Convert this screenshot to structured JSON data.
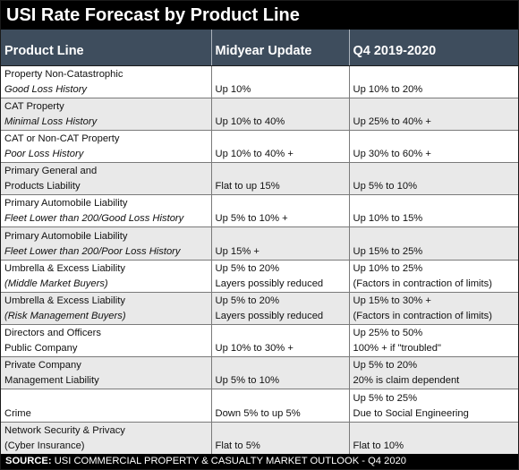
{
  "title": "USI Rate Forecast by Product Line",
  "columns": [
    "Product Line",
    "Midyear Update",
    "Q4 2019-2020"
  ],
  "rows": [
    {
      "product": [
        "Property Non-Catastrophic",
        "Good Loss History"
      ],
      "midyear": [
        "Up 10%"
      ],
      "q4": [
        "Up 10% to 20%"
      ]
    },
    {
      "product": [
        "CAT Property",
        "Minimal Loss History"
      ],
      "midyear": [
        "Up 10% to 40%"
      ],
      "q4": [
        "Up 25% to 40% +"
      ]
    },
    {
      "product": [
        "CAT or Non-CAT Property",
        "Poor Loss History"
      ],
      "midyear": [
        "Up 10% to 40% +"
      ],
      "q4": [
        "Up 30% to 60% +"
      ]
    },
    {
      "product": [
        "Primary General and",
        "Products Liability"
      ],
      "midyear": [
        "Flat to up 15%"
      ],
      "q4": [
        "Up 5% to 10%"
      ]
    },
    {
      "product": [
        "Primary Automobile Liability",
        "Fleet Lower than 200/Good Loss History"
      ],
      "midyear": [
        "Up 5% to 10% +"
      ],
      "q4": [
        "Up 10% to 15%"
      ]
    },
    {
      "product": [
        "Primary Automobile Liability",
        "Fleet Lower than 200/Poor Loss History"
      ],
      "midyear": [
        "Up 15% +"
      ],
      "q4": [
        "Up 15% to 25%"
      ]
    },
    {
      "product": [
        "Umbrella & Excess Liability",
        "(Middle Market Buyers)"
      ],
      "midyear": [
        "Up 5% to 20%",
        "Layers possibly reduced"
      ],
      "q4": [
        "Up 10% to 25%",
        "(Factors in contraction of limits)"
      ]
    },
    {
      "product": [
        "Umbrella & Excess Liability",
        "(Risk Management Buyers)"
      ],
      "midyear": [
        "Up 5% to 20%",
        "Layers possibly reduced"
      ],
      "q4": [
        "Up 15% to 30% +",
        "(Factors in contraction of limits)"
      ]
    },
    {
      "product": [
        "Directors and Officers",
        "Public Company"
      ],
      "midyear": [
        "Up 10% to 30% +"
      ],
      "q4": [
        "Up 25% to 50%",
        "100% + if \"troubled\""
      ]
    },
    {
      "product": [
        "Private Company",
        "Management Liability"
      ],
      "midyear": [
        "Up 5% to 10%"
      ],
      "q4": [
        "Up 5% to 20%",
        "20% is claim dependent"
      ]
    },
    {
      "product": [
        "Crime"
      ],
      "midyear": [
        "Down 5% to up 5%"
      ],
      "q4": [
        "Up 5% to 25%",
        "Due to Social Engineering"
      ]
    },
    {
      "product": [
        "Network Security & Privacy",
        "(Cyber Insurance)"
      ],
      "midyear": [
        "Flat to 5%"
      ],
      "q4": [
        "Flat to 10%"
      ]
    }
  ],
  "source": {
    "label": "SOURCE:",
    "text": " USI COMMERCIAL PROPERTY & CASUALTY MARKET OUTLOOK - Q4 2020"
  },
  "colors": {
    "title_bg": "#000000",
    "header_bg": "#3e4d5d",
    "alt_row": "#e9e9e9"
  }
}
